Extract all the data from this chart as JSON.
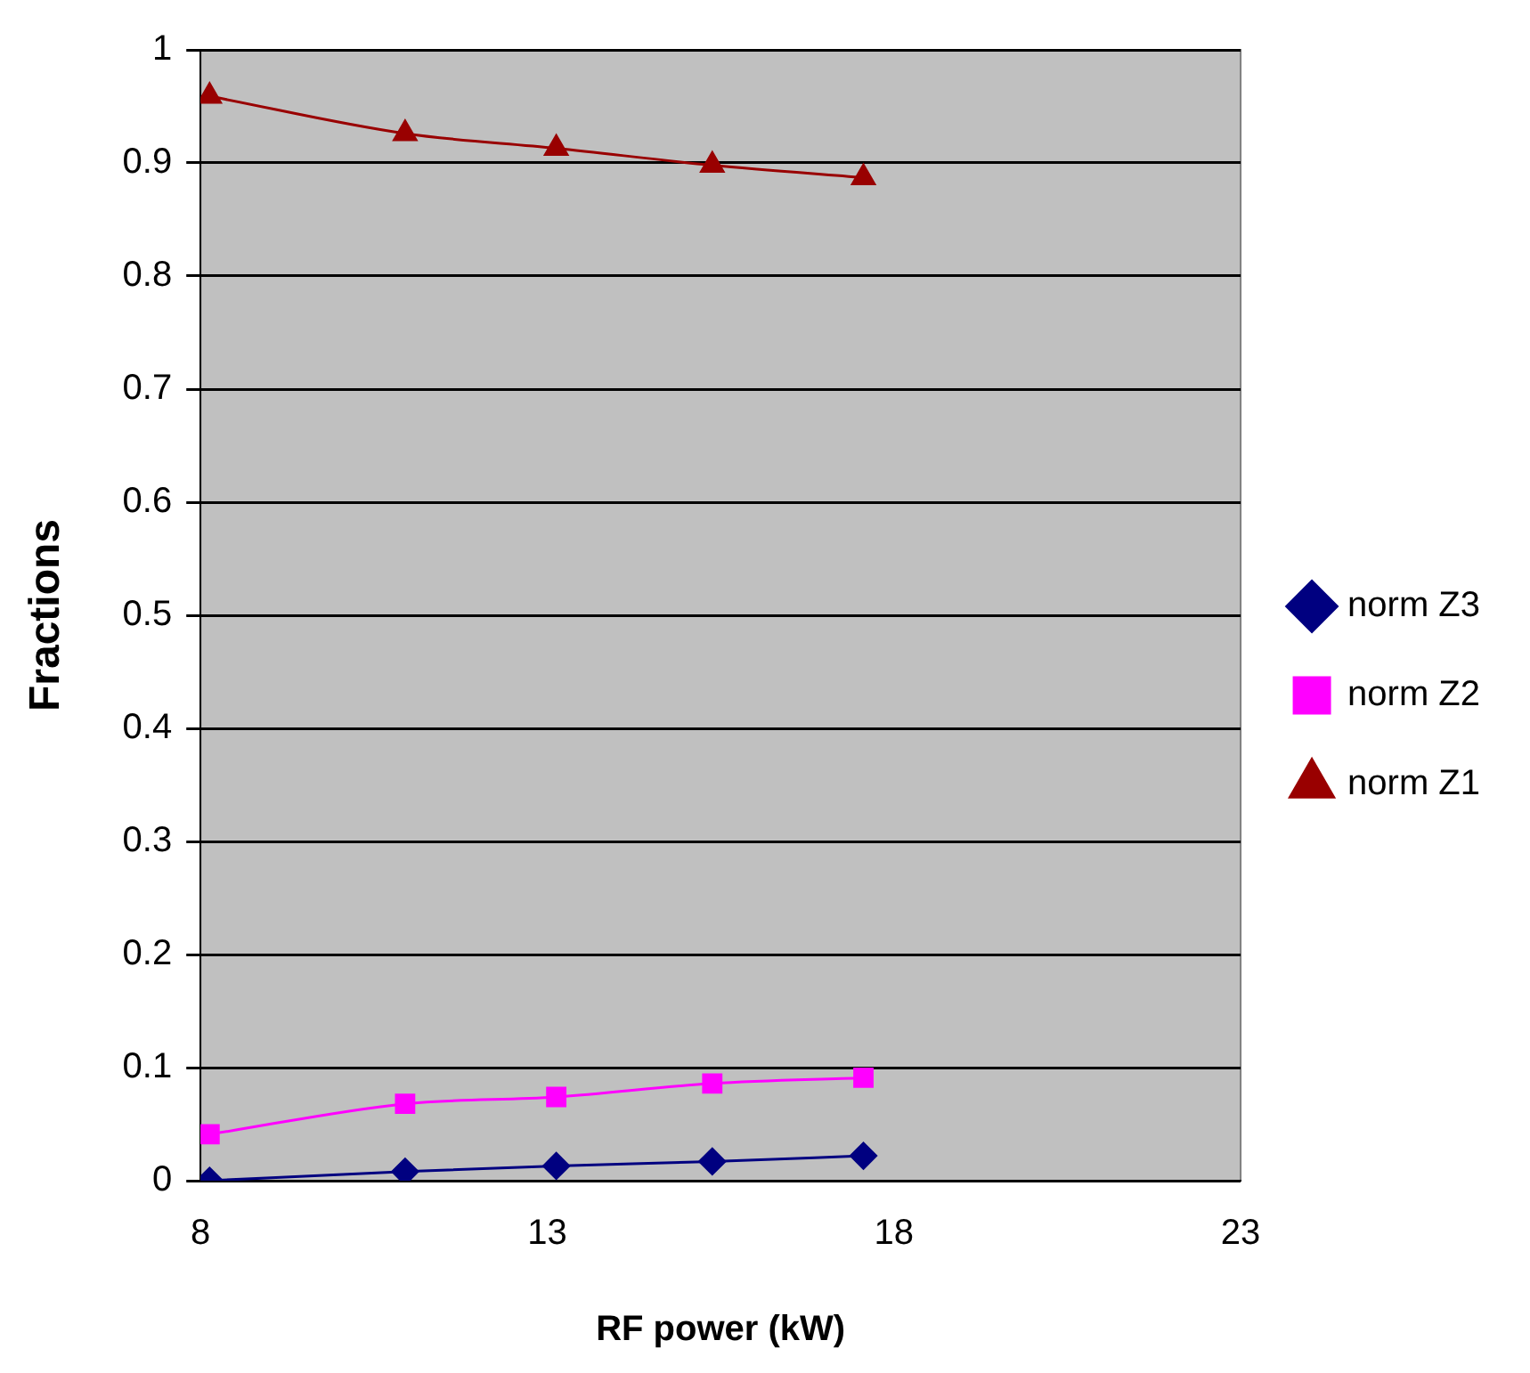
{
  "chart_data": {
    "type": "line",
    "xlabel": "RF power (kW)",
    "ylabel": "Fractions",
    "x": [
      8.13,
      10.95,
      13.13,
      15.38,
      17.56
    ],
    "series": [
      {
        "name": "norm Z3",
        "color": "#000080",
        "marker": "diamond",
        "values": [
          0,
          0.008,
          0.013,
          0.017,
          0.022
        ]
      },
      {
        "name": "norm Z2",
        "color": "#ff00ff",
        "marker": "square",
        "values": [
          0.041,
          0.068,
          0.074,
          0.086,
          0.091
        ]
      },
      {
        "name": "norm Z1",
        "color": "#990000",
        "marker": "triangle",
        "values": [
          0.959,
          0.926,
          0.913,
          0.898,
          0.887
        ]
      }
    ],
    "xlim": [
      8,
      23
    ],
    "xticks": [
      8,
      13,
      18,
      23
    ],
    "ylim": [
      0,
      1
    ],
    "yticks": [
      0,
      0.1,
      0.2,
      0.3,
      0.4,
      0.5,
      0.6,
      0.7,
      0.8,
      0.9,
      1
    ],
    "grid": "y",
    "legend": "right"
  }
}
